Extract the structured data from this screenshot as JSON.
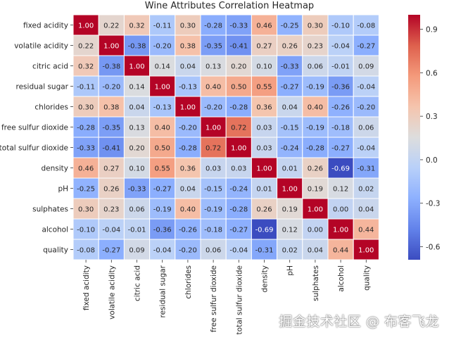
{
  "chart_data": {
    "type": "heatmap",
    "title": "Wine Attributes Correlation Heatmap",
    "labels": [
      "fixed acidity",
      "volatile acidity",
      "citric acid",
      "residual sugar",
      "chlorides",
      "free sulfur dioxide",
      "total sulfur dioxide",
      "density",
      "pH",
      "sulphates",
      "alcohol",
      "quality"
    ],
    "values": [
      [
        1.0,
        0.22,
        0.32,
        -0.11,
        0.3,
        -0.28,
        -0.33,
        0.46,
        -0.25,
        0.3,
        -0.1,
        -0.08
      ],
      [
        0.22,
        1.0,
        -0.38,
        -0.2,
        0.38,
        -0.35,
        -0.41,
        0.27,
        0.26,
        0.23,
        -0.04,
        -0.27
      ],
      [
        0.32,
        -0.38,
        1.0,
        0.14,
        0.04,
        0.13,
        0.2,
        0.1,
        -0.33,
        0.06,
        -0.01,
        0.09
      ],
      [
        -0.11,
        -0.2,
        0.14,
        1.0,
        -0.13,
        0.4,
        0.5,
        0.55,
        -0.27,
        -0.19,
        -0.36,
        -0.04
      ],
      [
        0.3,
        0.38,
        0.04,
        -0.13,
        1.0,
        -0.2,
        -0.28,
        0.36,
        0.04,
        0.4,
        -0.26,
        -0.2
      ],
      [
        -0.28,
        -0.35,
        0.13,
        0.4,
        -0.2,
        1.0,
        0.72,
        0.03,
        -0.15,
        -0.19,
        -0.18,
        0.06
      ],
      [
        -0.33,
        -0.41,
        0.2,
        0.5,
        -0.28,
        0.72,
        1.0,
        0.03,
        -0.24,
        -0.28,
        -0.27,
        -0.04
      ],
      [
        0.46,
        0.27,
        0.1,
        0.55,
        0.36,
        0.03,
        0.03,
        1.0,
        0.01,
        0.26,
        -0.69,
        -0.31
      ],
      [
        -0.25,
        0.26,
        -0.33,
        -0.27,
        0.04,
        -0.15,
        -0.24,
        0.01,
        1.0,
        0.19,
        0.12,
        0.02
      ],
      [
        0.3,
        0.23,
        0.06,
        -0.19,
        0.4,
        -0.19,
        -0.28,
        0.26,
        0.19,
        1.0,
        -0.0,
        0.04
      ],
      [
        -0.1,
        -0.04,
        -0.01,
        -0.36,
        -0.26,
        -0.18,
        -0.27,
        -0.69,
        0.12,
        -0.0,
        1.0,
        0.44
      ],
      [
        -0.08,
        -0.27,
        0.09,
        -0.04,
        -0.2,
        0.06,
        -0.04,
        -0.31,
        0.02,
        0.04,
        0.44,
        1.0
      ]
    ],
    "colormap": "coolwarm",
    "vmin": -0.69,
    "vmax": 1.0,
    "colorbar_ticks": [
      "0.9",
      "0.6",
      "0.3",
      "0.0",
      "-0.3",
      "-0.6"
    ],
    "colorbar_tick_values": [
      0.9,
      0.6,
      0.3,
      0.0,
      -0.3,
      -0.6
    ]
  },
  "watermark": "掘金技术社区 @ 布客飞龙"
}
